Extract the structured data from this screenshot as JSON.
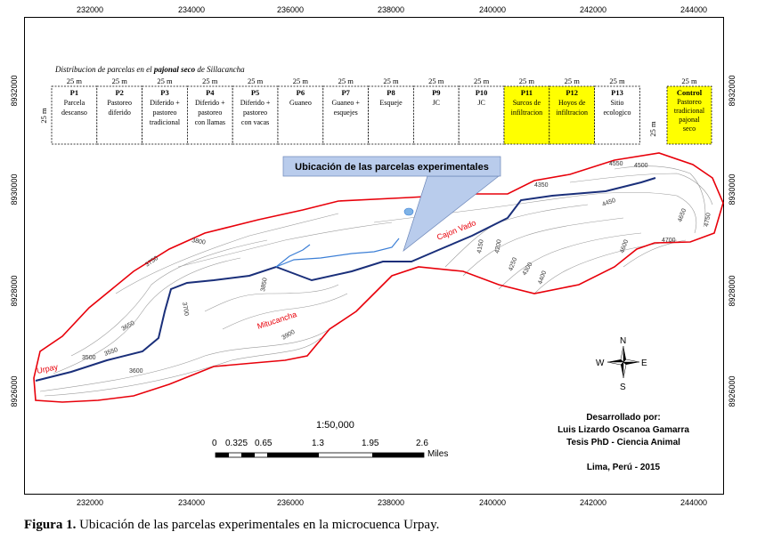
{
  "coords_top": [
    "232000",
    "234000",
    "236000",
    "238000",
    "240000",
    "242000",
    "244000"
  ],
  "coords_bottom": [
    "232000",
    "234000",
    "236000",
    "238000",
    "240000",
    "242000",
    "244000"
  ],
  "coords_left": [
    "8932000",
    "8930000",
    "8928000",
    "8926000"
  ],
  "coords_right": [
    "8932000",
    "8930000",
    "8928000",
    "8926000"
  ],
  "table_title_prefix": "Distribucion de parcelas en el ",
  "table_title_bold": "pajonal seco",
  "table_title_suffix": " de Sillacancha",
  "plot_width_label": "25 m",
  "plot_height_label": "25 m",
  "plots": [
    {
      "id": "P1",
      "desc": [
        "Parcela",
        "descanso"
      ],
      "highlight": false
    },
    {
      "id": "P2",
      "desc": [
        "Pastoreo",
        "diferido"
      ],
      "highlight": false
    },
    {
      "id": "P3",
      "desc": [
        "Diferido +",
        "pastoreo",
        "tradicional"
      ],
      "highlight": false
    },
    {
      "id": "P4",
      "desc": [
        "Diferido +",
        "pastoreo",
        "con llamas"
      ],
      "highlight": false
    },
    {
      "id": "P5",
      "desc": [
        "Diferido +",
        "pastoreo",
        "con vacas"
      ],
      "highlight": false
    },
    {
      "id": "P6",
      "desc": [
        "Guaneo"
      ],
      "highlight": false
    },
    {
      "id": "P7",
      "desc": [
        "Guaneo +",
        "esquejes"
      ],
      "highlight": false
    },
    {
      "id": "P8",
      "desc": [
        "Esqueje"
      ],
      "highlight": false
    },
    {
      "id": "P9",
      "desc": [
        "JC"
      ],
      "highlight": false
    },
    {
      "id": "P10",
      "desc": [
        "JC"
      ],
      "highlight": false
    },
    {
      "id": "P11",
      "desc": [
        "Surcos de",
        "infiltracion"
      ],
      "highlight": true
    },
    {
      "id": "P12",
      "desc": [
        "Hoyos de",
        "infiltracion"
      ],
      "highlight": true
    },
    {
      "id": "P13",
      "desc": [
        "Sitio",
        "ecologico"
      ],
      "highlight": false
    }
  ],
  "control_plot": {
    "id": "Control",
    "desc": [
      "Pastoreo",
      "tradicional",
      "pajonal",
      "seco"
    ]
  },
  "callout_label": "Ubicación de las parcelas experimentales",
  "river_labels": {
    "urpay": "Urpay",
    "cajon_vado": "Cajon Vado",
    "mitucancha": "Mitucancha"
  },
  "contour_labels": [
    "3500",
    "3550",
    "3600",
    "3650",
    "3700",
    "3750",
    "3800",
    "3850",
    "3900",
    "4150",
    "4200",
    "4250",
    "4300",
    "4350",
    "4400",
    "4450",
    "4500",
    "4550",
    "4600",
    "4650",
    "4700",
    "4750"
  ],
  "compass": {
    "n": "N",
    "s": "S",
    "e": "E",
    "w": "W"
  },
  "scale": {
    "ratio": "1:50,000",
    "ticks": [
      "0",
      "0.325",
      "0.65",
      "1.3",
      "1.95",
      "2.6"
    ],
    "unit": "Miles"
  },
  "credits": [
    "Desarrollado por:",
    "Luis Lizardo Oscanoa Gamarra",
    "Tesis PhD - Ciencia Animal",
    "Lima, Perú - 2015"
  ],
  "caption_bold": "Figura 1.",
  "caption_text": " Ubicación de las parcelas experimentales en la microcuenca Urpay.",
  "colors": {
    "boundary": "#e8000a",
    "river_main": "#1a2f7a",
    "river_trib": "#3c7fd6",
    "highlight": "#ffff00",
    "callout": "#b9ccec",
    "contour": "#9a9a9a"
  }
}
